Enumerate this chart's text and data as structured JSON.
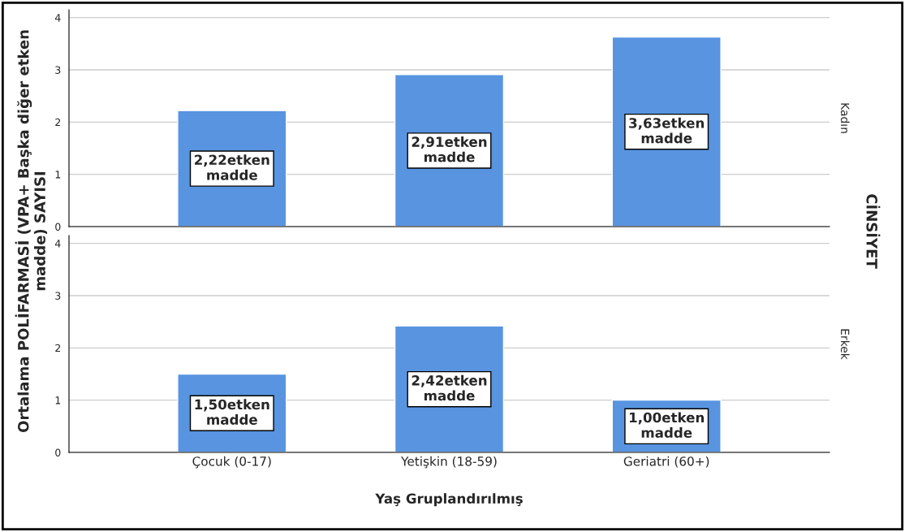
{
  "chart_data": [
    {
      "type": "bar",
      "categories": [
        null,
        null,
        null
      ],
      "values": [
        2.22,
        2.91,
        3.63
      ],
      "color": "#5894e0",
      "value_labels": [
        "2,22etken\nmadde",
        "2,91etken\nmadde",
        "3,63etken\nmadde"
      ],
      "ylim": [
        0,
        4.15
      ],
      "yticks": [
        0,
        1,
        2,
        3,
        4
      ],
      "grid": "y",
      "tick_labels": "y",
      "ylabel": "Ortalama POLİFARMASİ (VPA+ Başka diğer etken madde) SAYISI",
      "y2label": "Kadın",
      "annotations": [
        "CİNSİYET"
      ]
    },
    {
      "type": "bar",
      "categories": [
        "Çocuk (0-17)",
        "Yetişkin (18-59)",
        "Geriatri (60+)"
      ],
      "values": [
        1.5,
        2.42,
        1.0
      ],
      "color": "#5894e0",
      "value_labels": [
        "1,50etken\nmadde",
        "2,42etken\nmadde",
        "1,00etken\nmadde"
      ],
      "ylim": [
        0,
        4.15
      ],
      "yticks": [
        0,
        1,
        2,
        3,
        4
      ],
      "grid": "y",
      "xlabel": "Yaş Gruplandırılmış",
      "y2label": "Erkek"
    }
  ]
}
